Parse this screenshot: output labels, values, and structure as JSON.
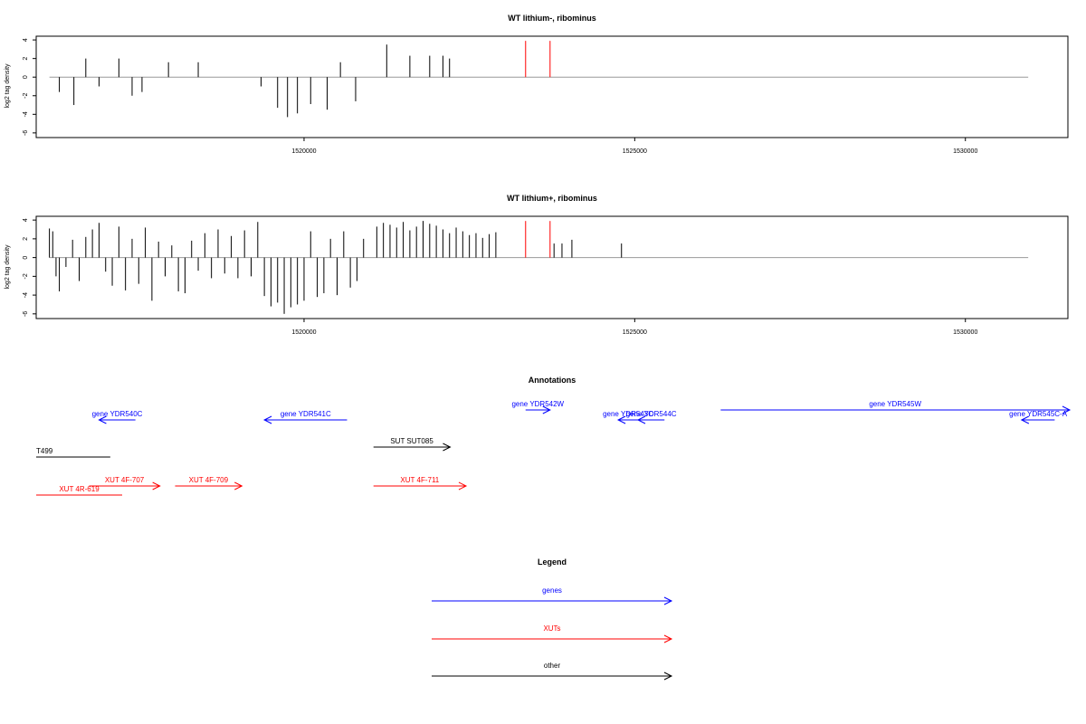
{
  "colors": {
    "genes": "#0000ff",
    "xuts": "#ff0000",
    "other": "#000000",
    "baseline": "#999999",
    "frame": "#000000"
  },
  "chart_data": [
    {
      "type": "bar",
      "title": "WT lithium-, ribominus",
      "xlabel": "",
      "ylabel": "log2 tag density",
      "xlim": [
        1515950,
        1531550
      ],
      "ylim": [
        -6.5,
        4.4
      ],
      "x_ticks": [
        1520000,
        1525000,
        1530000
      ],
      "y_ticks": [
        -6,
        -4,
        -2,
        0,
        2,
        4
      ],
      "baseline": {
        "from": 1516150,
        "to": 1530950
      },
      "x": [
        1516300,
        1516520,
        1516700,
        1516900,
        1517200,
        1517400,
        1517550,
        1517950,
        1518400,
        1519350,
        1519600,
        1519750,
        1519900,
        1520100,
        1520350,
        1520550,
        1520780,
        1521250,
        1521600,
        1521900,
        1522100,
        1522200,
        1523350,
        1523720
      ],
      "values": [
        -1.6,
        -3.0,
        2.0,
        -1.0,
        2.0,
        -2.0,
        -1.6,
        1.6,
        1.6,
        -1.0,
        -3.3,
        -4.3,
        -3.9,
        -2.9,
        -3.5,
        1.6,
        -2.6,
        3.5,
        2.3,
        2.3,
        2.3,
        2.0,
        3.9,
        3.9
      ],
      "highlighted": [
        false,
        false,
        false,
        false,
        false,
        false,
        false,
        false,
        false,
        false,
        false,
        false,
        false,
        false,
        false,
        false,
        false,
        false,
        false,
        false,
        false,
        false,
        true,
        true
      ]
    },
    {
      "type": "bar",
      "title": "WT lithium+, ribominus",
      "xlabel": "",
      "ylabel": "log2 tag density",
      "xlim": [
        1515950,
        1531550
      ],
      "ylim": [
        -6.5,
        4.4
      ],
      "x_ticks": [
        1520000,
        1525000,
        1530000
      ],
      "y_ticks": [
        -6,
        -4,
        -2,
        0,
        2,
        4
      ],
      "baseline": {
        "from": 1516150,
        "to": 1530950
      },
      "x": [
        1516150,
        1516200,
        1516250,
        1516300,
        1516400,
        1516500,
        1516600,
        1516700,
        1516800,
        1516900,
        1517000,
        1517100,
        1517200,
        1517300,
        1517400,
        1517500,
        1517600,
        1517700,
        1517800,
        1517900,
        1518000,
        1518100,
        1518200,
        1518300,
        1518400,
        1518500,
        1518600,
        1518700,
        1518800,
        1518900,
        1519000,
        1519100,
        1519200,
        1519300,
        1519400,
        1519500,
        1519600,
        1519700,
        1519800,
        1519900,
        1520000,
        1520100,
        1520200,
        1520300,
        1520400,
        1520500,
        1520600,
        1520700,
        1520800,
        1520900,
        1521100,
        1521200,
        1521300,
        1521400,
        1521500,
        1521600,
        1521700,
        1521800,
        1521900,
        1522000,
        1522100,
        1522200,
        1522300,
        1522400,
        1522500,
        1522600,
        1522700,
        1522800,
        1522900,
        1523350,
        1523720,
        1523780,
        1523900,
        1524050,
        1524800
      ],
      "values": [
        3.1,
        2.8,
        -2.0,
        -3.6,
        -1.0,
        1.9,
        -2.5,
        2.2,
        3.0,
        3.7,
        -1.5,
        -3.0,
        3.3,
        -3.5,
        2.0,
        -2.8,
        3.2,
        -4.6,
        1.7,
        -2.0,
        1.3,
        -3.6,
        -3.8,
        1.8,
        -1.4,
        2.6,
        -2.2,
        3.0,
        -1.7,
        2.3,
        -2.2,
        2.9,
        -2.0,
        3.8,
        -4.1,
        -5.2,
        -4.8,
        -6.0,
        -5.3,
        -5.0,
        -4.6,
        2.8,
        -4.2,
        -3.8,
        2.0,
        -4.0,
        2.8,
        -3.2,
        -2.5,
        2.0,
        3.3,
        3.7,
        3.5,
        3.2,
        3.8,
        2.9,
        3.3,
        3.9,
        3.6,
        3.4,
        3.0,
        2.6,
        3.2,
        2.8,
        2.4,
        2.6,
        2.1,
        2.5,
        2.7,
        3.9,
        3.9,
        1.5,
        1.5,
        1.9,
        1.5
      ],
      "highlighted": [
        false,
        false,
        false,
        false,
        false,
        false,
        false,
        false,
        false,
        false,
        false,
        false,
        false,
        false,
        false,
        false,
        false,
        false,
        false,
        false,
        false,
        false,
        false,
        false,
        false,
        false,
        false,
        false,
        false,
        false,
        false,
        false,
        false,
        false,
        false,
        false,
        false,
        false,
        false,
        false,
        false,
        false,
        false,
        false,
        false,
        false,
        false,
        false,
        false,
        false,
        false,
        false,
        false,
        false,
        false,
        false,
        false,
        false,
        false,
        false,
        false,
        false,
        false,
        false,
        false,
        false,
        false,
        false,
        false,
        true,
        true,
        false,
        false,
        false,
        false
      ]
    }
  ],
  "annotations": {
    "title": "Annotations",
    "xlim": [
      1515950,
      1531550
    ],
    "features": [
      {
        "label": "gene YDR540C",
        "class": "genes",
        "strand": "-",
        "start": 1516900,
        "end": 1517450,
        "level": 1
      },
      {
        "label": "gene YDR541C",
        "class": "genes",
        "strand": "-",
        "start": 1519400,
        "end": 1520650,
        "level": 1
      },
      {
        "label": "gene YDR542W",
        "class": "genes",
        "strand": "+",
        "start": 1523350,
        "end": 1523720,
        "level": 0
      },
      {
        "label": "gene YDR543C",
        "class": "genes",
        "strand": "-",
        "start": 1524750,
        "end": 1525050,
        "level": 1
      },
      {
        "label": "gene YDR544C",
        "class": "genes",
        "strand": "-",
        "start": 1525050,
        "end": 1525450,
        "level": 1
      },
      {
        "label": "gene YDR545W",
        "class": "genes",
        "strand": "+",
        "start": 1526300,
        "end": 1531600,
        "level": 0
      },
      {
        "label": "gene YDR545C-A",
        "class": "genes",
        "strand": "-",
        "start": 1530850,
        "end": 1531350,
        "level": 1
      },
      {
        "label": "T499",
        "class": "other",
        "strand": "",
        "start": 1515950,
        "end": 1517070,
        "level": 2
      },
      {
        "label": "SUT SUT085",
        "class": "other",
        "strand": "+",
        "start": 1521050,
        "end": 1522210,
        "level": 3
      },
      {
        "label": "XUT 4R-619",
        "class": "xuts",
        "strand": "",
        "start": 1515950,
        "end": 1517250,
        "level": 5
      },
      {
        "label": "XUT 4F-707",
        "class": "xuts",
        "strand": "+",
        "start": 1516750,
        "end": 1517820,
        "level": 4
      },
      {
        "label": "XUT 4F-709",
        "class": "xuts",
        "strand": "+",
        "start": 1518050,
        "end": 1519060,
        "level": 4
      },
      {
        "label": "XUT 4F-711",
        "class": "xuts",
        "strand": "+",
        "start": 1521050,
        "end": 1522450,
        "level": 4
      }
    ]
  },
  "legend": {
    "title": "Legend",
    "items": [
      {
        "label": "genes",
        "class": "genes"
      },
      {
        "label": "XUTs",
        "class": "xuts"
      },
      {
        "label": "other",
        "class": "other"
      }
    ]
  }
}
